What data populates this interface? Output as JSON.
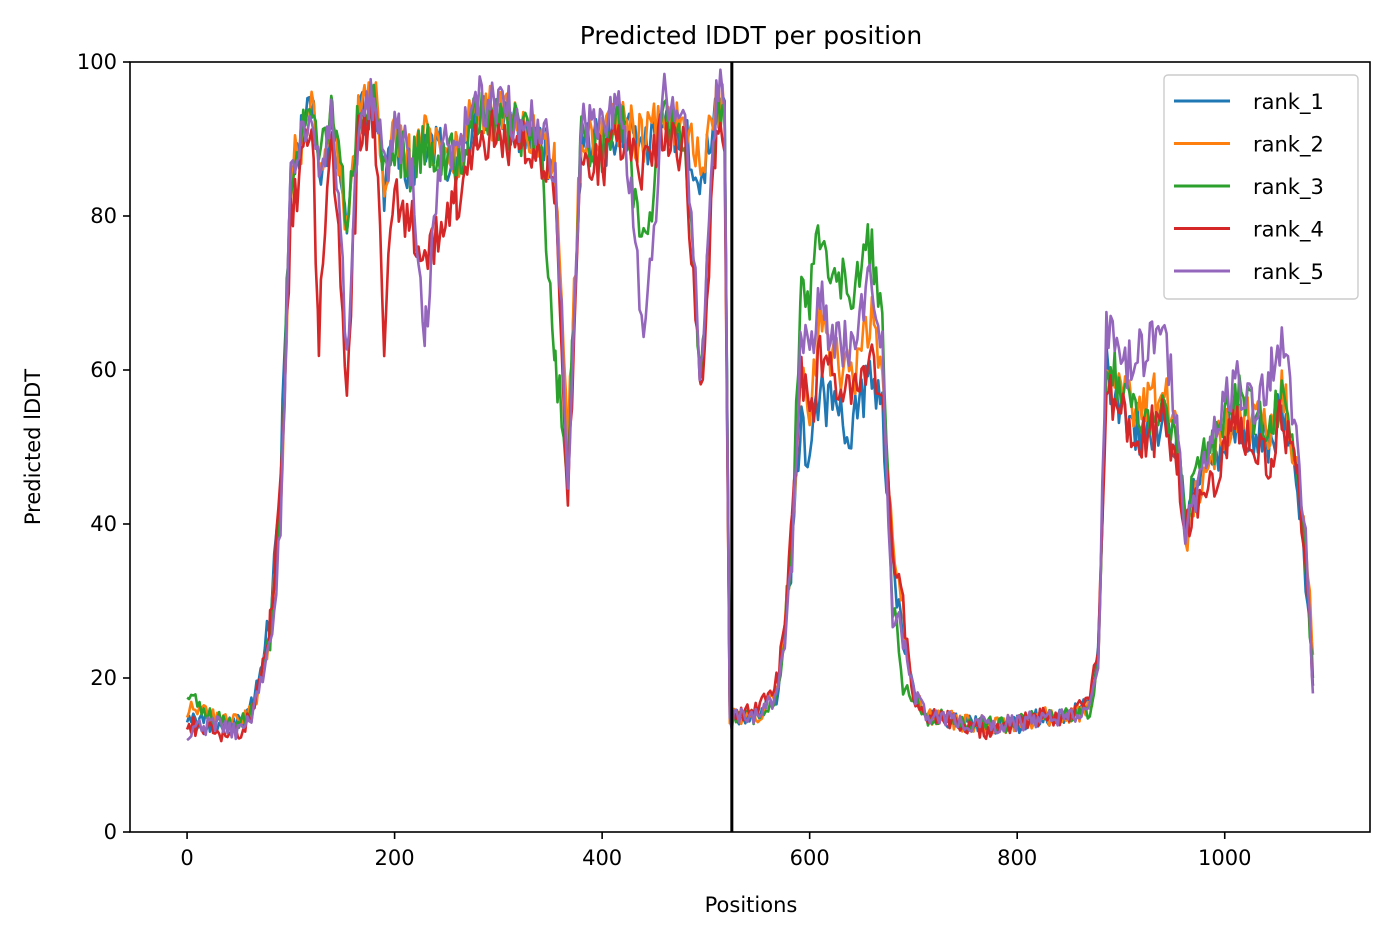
{
  "chart_data": {
    "type": "line",
    "title": "Predicted lDDT per position",
    "xlabel": "Positions",
    "ylabel": "Predicted lDDT",
    "xlim": [
      -55,
      1140
    ],
    "ylim": [
      0,
      100
    ],
    "xticks": [
      0,
      200,
      400,
      600,
      800,
      1000
    ],
    "yticks": [
      0,
      20,
      40,
      60,
      80,
      100
    ],
    "grid": false,
    "legend_position": "top-right",
    "chain_break_x": 525,
    "series": [
      {
        "name": "rank_1",
        "color": "#1f77b4",
        "x": [
          0,
          25,
          50,
          65,
          80,
          90,
          100,
          120,
          127,
          140,
          154,
          165,
          180,
          190,
          200,
          215,
          230,
          245,
          260,
          280,
          300,
          320,
          340,
          355,
          367,
          380,
          400,
          420,
          440,
          460,
          480,
          495,
          510,
          520,
          523,
          530,
          550,
          570,
          583,
          592,
          600,
          610,
          620,
          640,
          660,
          670,
          680,
          690,
          700,
          712,
          725,
          750,
          775,
          800,
          825,
          850,
          870,
          878,
          886,
          900,
          920,
          940,
          955,
          962,
          972,
          990,
          1010,
          1030,
          1045,
          1055,
          1070,
          1080,
          1085
        ],
        "y": [
          15,
          14,
          14,
          17,
          28,
          45,
          86,
          94,
          85,
          93,
          80,
          92,
          95,
          84,
          90,
          86,
          89,
          88,
          87,
          93,
          92,
          91,
          90,
          85,
          48,
          90,
          89,
          92,
          88,
          93,
          90,
          85,
          93,
          93,
          16,
          15,
          15,
          18,
          36,
          55,
          47,
          58,
          55,
          53,
          60,
          54,
          34,
          25,
          18,
          15,
          15,
          14,
          14,
          14,
          15,
          15,
          17,
          23,
          60,
          55,
          52,
          54,
          50,
          40,
          45,
          48,
          54,
          52,
          50,
          56,
          45,
          30,
          19
        ]
      },
      {
        "name": "rank_2",
        "color": "#ff7f0e",
        "x": [
          0,
          25,
          50,
          65,
          80,
          90,
          100,
          120,
          127,
          140,
          154,
          165,
          180,
          190,
          200,
          215,
          230,
          245,
          260,
          280,
          300,
          320,
          340,
          355,
          367,
          380,
          400,
          420,
          440,
          460,
          480,
          495,
          510,
          520,
          523,
          530,
          550,
          570,
          583,
          592,
          600,
          610,
          620,
          640,
          660,
          670,
          680,
          690,
          700,
          712,
          725,
          750,
          775,
          800,
          825,
          850,
          870,
          878,
          886,
          900,
          920,
          940,
          955,
          962,
          972,
          990,
          1010,
          1030,
          1045,
          1055,
          1070,
          1080,
          1085
        ],
        "y": [
          16,
          15,
          14,
          16,
          25,
          40,
          85,
          95,
          87,
          94,
          78,
          93,
          96,
          86,
          91,
          87,
          90,
          89,
          88,
          94,
          93,
          92,
          91,
          86,
          50,
          91,
          90,
          93,
          89,
          94,
          91,
          86,
          94,
          94,
          15,
          15,
          15,
          19,
          38,
          60,
          55,
          66,
          62,
          59,
          66,
          60,
          37,
          29,
          18,
          15,
          15,
          14,
          14,
          14,
          15,
          15,
          16,
          22,
          61,
          56,
          55,
          57,
          51,
          36,
          44,
          49,
          55,
          53,
          51,
          58,
          48,
          33,
          23
        ]
      },
      {
        "name": "rank_3",
        "color": "#2ca02c",
        "x": [
          0,
          25,
          50,
          65,
          80,
          90,
          100,
          120,
          127,
          140,
          154,
          165,
          180,
          190,
          200,
          215,
          230,
          245,
          260,
          280,
          300,
          320,
          340,
          355,
          367,
          380,
          400,
          420,
          440,
          460,
          480,
          495,
          510,
          520,
          523,
          530,
          550,
          570,
          583,
          592,
          600,
          610,
          620,
          640,
          660,
          670,
          680,
          690,
          700,
          712,
          725,
          750,
          775,
          800,
          825,
          850,
          870,
          878,
          886,
          900,
          920,
          940,
          955,
          962,
          972,
          990,
          1010,
          1030,
          1045,
          1055,
          1070,
          1080,
          1085
        ],
        "y": [
          18,
          15,
          14,
          16,
          26,
          42,
          86,
          94,
          86,
          93,
          79,
          92,
          95,
          85,
          90,
          86,
          89,
          88,
          87,
          93,
          92,
          91,
          90,
          60,
          49,
          90,
          89,
          92,
          75,
          93,
          90,
          60,
          93,
          93,
          16,
          15,
          15,
          18,
          37,
          72,
          70,
          78,
          74,
          70,
          77,
          65,
          30,
          19,
          18,
          15,
          15,
          14,
          14,
          14,
          15,
          15,
          16,
          22,
          62,
          57,
          54,
          56,
          50,
          40,
          48,
          50,
          58,
          54,
          52,
          57,
          47,
          31,
          20
        ]
      },
      {
        "name": "rank_4",
        "color": "#d62728",
        "x": [
          0,
          25,
          50,
          65,
          80,
          90,
          100,
          120,
          127,
          140,
          154,
          165,
          180,
          190,
          200,
          215,
          230,
          245,
          260,
          280,
          300,
          320,
          340,
          355,
          367,
          380,
          400,
          420,
          440,
          460,
          480,
          495,
          510,
          520,
          523,
          530,
          550,
          570,
          583,
          592,
          600,
          610,
          620,
          640,
          660,
          670,
          680,
          690,
          700,
          712,
          725,
          750,
          775,
          800,
          825,
          850,
          870,
          878,
          886,
          900,
          920,
          940,
          955,
          962,
          972,
          990,
          1010,
          1030,
          1045,
          1055,
          1070,
          1080,
          1085
        ],
        "y": [
          14,
          13,
          13,
          16,
          27,
          44,
          80,
          92,
          65,
          91,
          57,
          90,
          93,
          65,
          82,
          80,
          73,
          80,
          82,
          91,
          90,
          89,
          88,
          84,
          43,
          88,
          87,
          90,
          86,
          91,
          88,
          56,
          91,
          91,
          15,
          15,
          16,
          20,
          39,
          60,
          52,
          63,
          60,
          56,
          62,
          58,
          36,
          29,
          17,
          15,
          15,
          14,
          13,
          14,
          15,
          15,
          18,
          24,
          58,
          54,
          51,
          53,
          47,
          39,
          43,
          46,
          52,
          50,
          48,
          55,
          46,
          30,
          19
        ]
      },
      {
        "name": "rank_5",
        "color": "#9467bd",
        "x": [
          0,
          25,
          50,
          65,
          80,
          90,
          100,
          120,
          127,
          140,
          154,
          165,
          180,
          190,
          200,
          215,
          230,
          245,
          260,
          280,
          300,
          320,
          340,
          355,
          367,
          380,
          400,
          420,
          440,
          460,
          480,
          495,
          510,
          520,
          523,
          530,
          550,
          570,
          583,
          592,
          600,
          610,
          620,
          640,
          660,
          670,
          680,
          690,
          700,
          712,
          725,
          750,
          775,
          800,
          825,
          850,
          870,
          878,
          886,
          900,
          920,
          940,
          955,
          962,
          972,
          990,
          1010,
          1030,
          1045,
          1055,
          1070,
          1080,
          1085
        ],
        "y": [
          13,
          14,
          13,
          16,
          24,
          39,
          86,
          95,
          86,
          94,
          62,
          93,
          96,
          86,
          91,
          87,
          65,
          89,
          88,
          95,
          94,
          93,
          92,
          86,
          47,
          92,
          91,
          94,
          64,
          95,
          92,
          60,
          96,
          96,
          14,
          15,
          15,
          18,
          36,
          65,
          60,
          69,
          65,
          62,
          72,
          62,
          28,
          26,
          18,
          15,
          15,
          14,
          14,
          14,
          15,
          15,
          16,
          22,
          65,
          60,
          62,
          66,
          54,
          38,
          44,
          52,
          58,
          55,
          60,
          65,
          50,
          34,
          18
        ]
      }
    ]
  }
}
